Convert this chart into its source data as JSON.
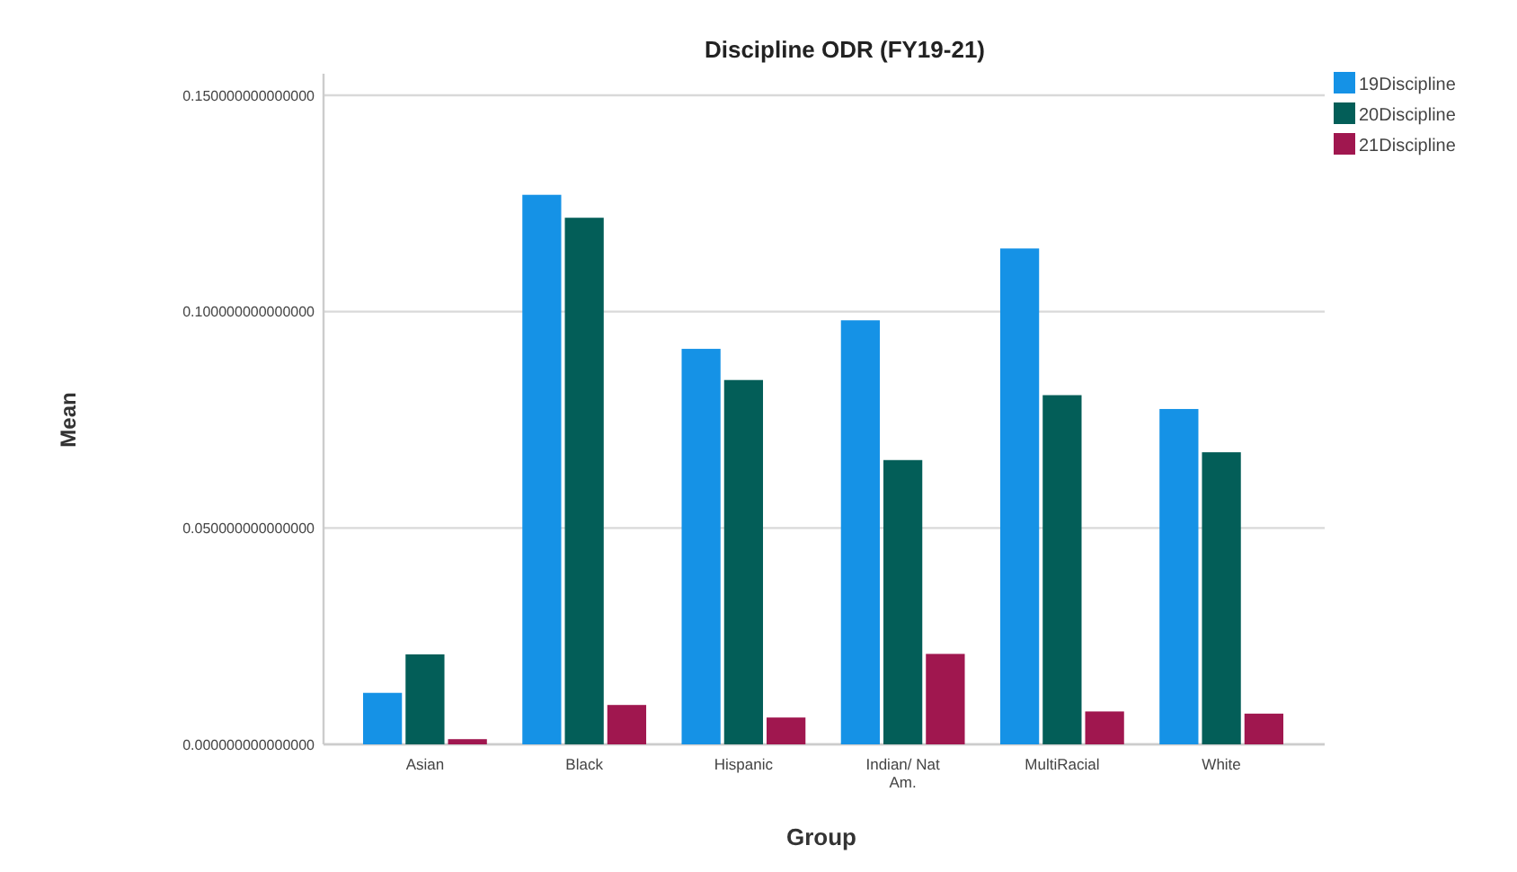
{
  "chart_data": {
    "type": "bar",
    "title": "Discipline ODR (FY19-21)",
    "xlabel": "Group",
    "ylabel": "Mean",
    "categories": [
      "Asian",
      "Black",
      "Hispanic",
      "Indian/ Nat Am.",
      "MultiRacial",
      "White"
    ],
    "series": [
      {
        "name": "19Discipline",
        "color": "#1592e6",
        "values": [
          0.0119,
          0.127,
          0.0914,
          0.098,
          0.1146,
          0.0775
        ]
      },
      {
        "name": "20Discipline",
        "color": "#035e58",
        "values": [
          0.0208,
          0.1217,
          0.0842,
          0.0657,
          0.0807,
          0.0675
        ]
      },
      {
        "name": "21Discipline",
        "color": "#a0174f",
        "values": [
          0.0012,
          0.0091,
          0.0062,
          0.0209,
          0.0076,
          0.0071
        ]
      }
    ],
    "ylim": [
      0,
      0.155
    ],
    "yticks": [
      {
        "value": 0,
        "label": "0.000000000000000"
      },
      {
        "value": 0.05,
        "label": "0.050000000000000"
      },
      {
        "value": 0.1,
        "label": "0.100000000000000"
      },
      {
        "value": 0.15,
        "label": "0.150000000000000"
      }
    ],
    "grid": "y",
    "legend": "top right"
  }
}
